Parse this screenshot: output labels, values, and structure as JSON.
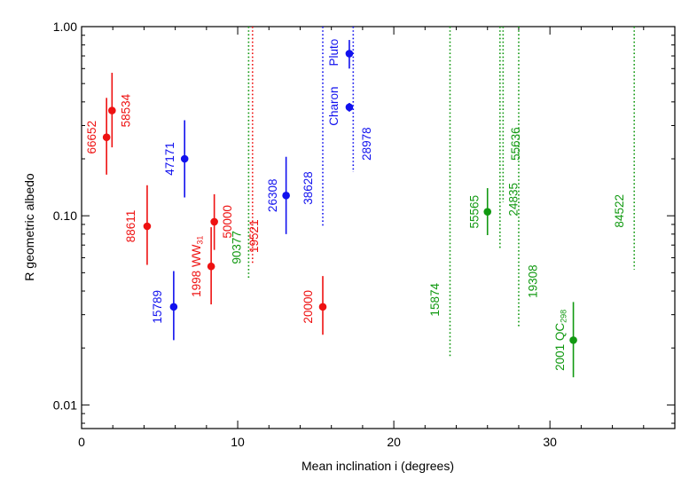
{
  "chart_data": {
    "type": "scatter",
    "xlabel": "Mean inclination i (degrees)",
    "ylabel": "R geometric albedo",
    "xlim": [
      0,
      38
    ],
    "ylim": [
      0.0075,
      1.0
    ],
    "yscale": "log",
    "x_ticks": [
      0,
      10,
      20,
      30
    ],
    "x_tick_labels": [
      "0",
      "10",
      "20",
      "30"
    ],
    "y_ticks": [
      0.01,
      0.1,
      1.0
    ],
    "y_tick_labels": [
      "0.01",
      "0.10",
      "1.00"
    ],
    "grid": false,
    "legend": "none",
    "colors": {
      "red": "#ee1111",
      "blue": "#1111ee",
      "green": "#119911"
    },
    "points": [
      {
        "label": "66652",
        "color": "red",
        "x": 1.6,
        "y": 0.26,
        "lo": 0.165,
        "hi": 0.42,
        "lx": 0.7,
        "ly": 0.26
      },
      {
        "label": "58534",
        "color": "red",
        "x": 1.95,
        "y": 0.36,
        "lo": 0.23,
        "hi": 0.57,
        "lx": 2.9,
        "ly": 0.36
      },
      {
        "label": "88611",
        "color": "red",
        "x": 4.2,
        "y": 0.088,
        "lo": 0.055,
        "hi": 0.145,
        "lx": 3.2,
        "ly": 0.088
      },
      {
        "label": "47171",
        "color": "blue",
        "x": 6.6,
        "y": 0.2,
        "lo": 0.125,
        "hi": 0.32,
        "lx": 5.7,
        "ly": 0.2
      },
      {
        "label": "15789",
        "color": "blue",
        "x": 5.9,
        "y": 0.033,
        "lo": 0.022,
        "hi": 0.051,
        "lx": 4.9,
        "ly": 0.033
      },
      {
        "label": "1998 WW",
        "label_sub": "31",
        "color": "red",
        "x": 8.3,
        "y": 0.054,
        "lo": 0.034,
        "hi": 0.087,
        "lx": 7.4,
        "ly": 0.054
      },
      {
        "label": "50000",
        "color": "red",
        "x": 8.5,
        "y": 0.093,
        "lo": 0.066,
        "hi": 0.13,
        "lx": 9.4,
        "ly": 0.093
      },
      {
        "label": "26308",
        "color": "blue",
        "x": 13.1,
        "y": 0.128,
        "lo": 0.08,
        "hi": 0.205,
        "lx": 12.3,
        "ly": 0.128
      },
      {
        "label": "20000",
        "color": "red",
        "x": 15.45,
        "y": 0.033,
        "lo": 0.0235,
        "hi": 0.048,
        "lx": 14.55,
        "ly": 0.033
      },
      {
        "label": "Pluto",
        "color": "blue",
        "x": 17.15,
        "y": 0.72,
        "lo": 0.6,
        "hi": 0.85,
        "lx": 16.2,
        "ly": 0.73
      },
      {
        "label": "Charon",
        "color": "blue",
        "x": 17.15,
        "y": 0.375,
        "lo": 0.355,
        "hi": 0.395,
        "lx": 16.2,
        "ly": 0.38
      },
      {
        "label": "55565",
        "color": "green",
        "x": 26.0,
        "y": 0.105,
        "lo": 0.079,
        "hi": 0.14,
        "lx": 25.2,
        "ly": 0.105
      },
      {
        "label": "2001 QC",
        "label_sub": "298",
        "color": "green",
        "x": 31.5,
        "y": 0.022,
        "lo": 0.014,
        "hi": 0.035,
        "lx": 30.7,
        "ly": 0.022
      }
    ],
    "upper_limits": [
      {
        "label": "90377",
        "color": "green",
        "x": 10.7,
        "top": 1.0,
        "bottom": 0.047,
        "lx": 10.0,
        "ly": 0.068
      },
      {
        "label": "19521",
        "color": "red",
        "x": 10.95,
        "top": 1.0,
        "bottom": 0.056,
        "lx": 11.1,
        "ly": 0.078
      },
      {
        "label": "38628",
        "color": "blue",
        "x": 15.45,
        "top": 1.0,
        "bottom": 0.087,
        "lx": 14.55,
        "ly": 0.14
      },
      {
        "label": "28978",
        "color": "blue",
        "x": 17.4,
        "top": 1.0,
        "bottom": 0.17,
        "lx": 18.3,
        "ly": 0.24
      },
      {
        "label": "15874",
        "color": "green",
        "x": 23.6,
        "top": 1.0,
        "bottom": 0.018,
        "lx": 22.7,
        "ly": 0.036
      },
      {
        "label": "24835",
        "color": "green",
        "x": 26.8,
        "top": 1.0,
        "bottom": 0.066,
        "lx": 27.7,
        "ly": 0.122
      },
      {
        "label": "55636",
        "color": "green",
        "x": 27.0,
        "top": 1.0,
        "bottom": 0.118,
        "lx": 27.85,
        "ly": 0.24
      },
      {
        "label": "19308",
        "color": "green",
        "x": 28.0,
        "top": 1.0,
        "bottom": 0.026,
        "lx": 28.95,
        "ly": 0.045
      },
      {
        "label": "84522",
        "color": "green",
        "x": 35.4,
        "top": 1.0,
        "bottom": 0.052,
        "lx": 34.5,
        "ly": 0.106
      }
    ]
  }
}
